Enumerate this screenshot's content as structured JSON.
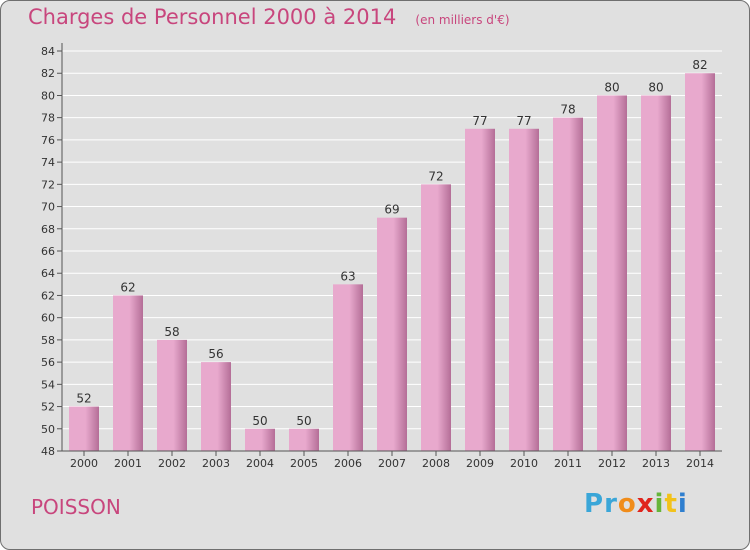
{
  "title": "Charges de Personnel 2000 à 2014",
  "subtitle": "(en milliers d'€)",
  "commune": "POISSON",
  "brand": {
    "text": "Proxiti",
    "letters": [
      {
        "ch": "P",
        "color": "#3aa6d8"
      },
      {
        "ch": "r",
        "color": "#3aa6d8"
      },
      {
        "ch": "o",
        "color": "#f08c1a"
      },
      {
        "ch": "x",
        "color": "#e0241c"
      },
      {
        "ch": "i",
        "color": "#66b53a"
      },
      {
        "ch": "t",
        "color": "#f2c21a"
      },
      {
        "ch": "i",
        "color": "#2f7fcf"
      }
    ]
  },
  "colors": {
    "accent": "#c8467d",
    "bar_light": "#e8a9cd",
    "bar_dark": "#b46e97",
    "background": "#e0e0e0"
  },
  "chart_data": {
    "type": "bar",
    "categories": [
      "2000",
      "2001",
      "2002",
      "2003",
      "2004",
      "2005",
      "2006",
      "2007",
      "2008",
      "2009",
      "2010",
      "2011",
      "2012",
      "2013",
      "2014"
    ],
    "values": [
      52,
      62,
      58,
      56,
      50,
      50,
      63,
      69,
      72,
      77,
      77,
      78,
      80,
      80,
      82
    ],
    "ylim": [
      48,
      84
    ],
    "yticks": [
      48,
      50,
      52,
      54,
      56,
      58,
      60,
      62,
      64,
      66,
      68,
      70,
      72,
      74,
      76,
      78,
      80,
      82,
      84
    ],
    "grid": true,
    "data_labels": true
  }
}
